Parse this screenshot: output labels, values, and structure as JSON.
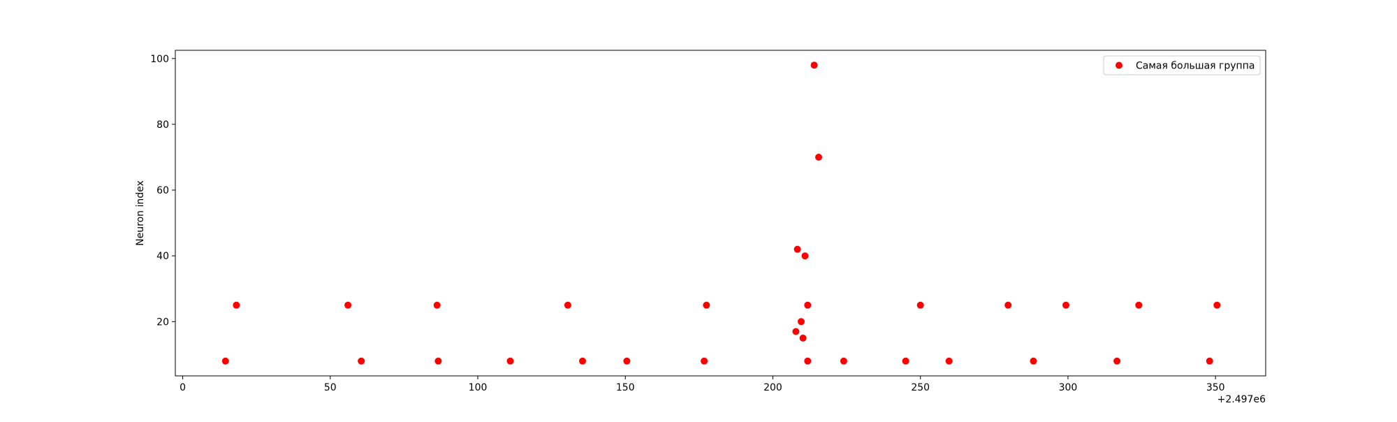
{
  "chart_data": {
    "type": "scatter",
    "title": "",
    "xlabel": "",
    "ylabel": "Neuron index",
    "x_offset_label": "+2.497e6",
    "xlim": [
      -2.5,
      367
    ],
    "ylim": [
      3.5,
      102.5
    ],
    "xticks": [
      0,
      50,
      100,
      150,
      200,
      250,
      300,
      350
    ],
    "yticks": [
      20,
      40,
      60,
      80,
      100
    ],
    "grid": false,
    "legend_position": "top-right",
    "series": [
      {
        "name": "Самая большая группа",
        "color": "#ff0000",
        "points": [
          {
            "x": 14.5,
            "y": 8
          },
          {
            "x": 18.2,
            "y": 25
          },
          {
            "x": 56,
            "y": 25
          },
          {
            "x": 60.5,
            "y": 8
          },
          {
            "x": 86.2,
            "y": 25
          },
          {
            "x": 86.6,
            "y": 8
          },
          {
            "x": 111,
            "y": 8
          },
          {
            "x": 130.5,
            "y": 25
          },
          {
            "x": 135.5,
            "y": 8
          },
          {
            "x": 150.5,
            "y": 8
          },
          {
            "x": 176.7,
            "y": 8
          },
          {
            "x": 177.5,
            "y": 25
          },
          {
            "x": 207.8,
            "y": 17
          },
          {
            "x": 208.3,
            "y": 42
          },
          {
            "x": 209.6,
            "y": 20
          },
          {
            "x": 210.2,
            "y": 15
          },
          {
            "x": 210.9,
            "y": 40
          },
          {
            "x": 211.8,
            "y": 25
          },
          {
            "x": 211.8,
            "y": 8
          },
          {
            "x": 214,
            "y": 98
          },
          {
            "x": 215.5,
            "y": 70
          },
          {
            "x": 224,
            "y": 8
          },
          {
            "x": 245,
            "y": 8
          },
          {
            "x": 250,
            "y": 25
          },
          {
            "x": 259.7,
            "y": 8
          },
          {
            "x": 279.7,
            "y": 25
          },
          {
            "x": 288.3,
            "y": 8
          },
          {
            "x": 299.3,
            "y": 25
          },
          {
            "x": 316.6,
            "y": 8
          },
          {
            "x": 324,
            "y": 25
          },
          {
            "x": 348,
            "y": 8
          },
          {
            "x": 350.5,
            "y": 25
          }
        ]
      }
    ]
  }
}
